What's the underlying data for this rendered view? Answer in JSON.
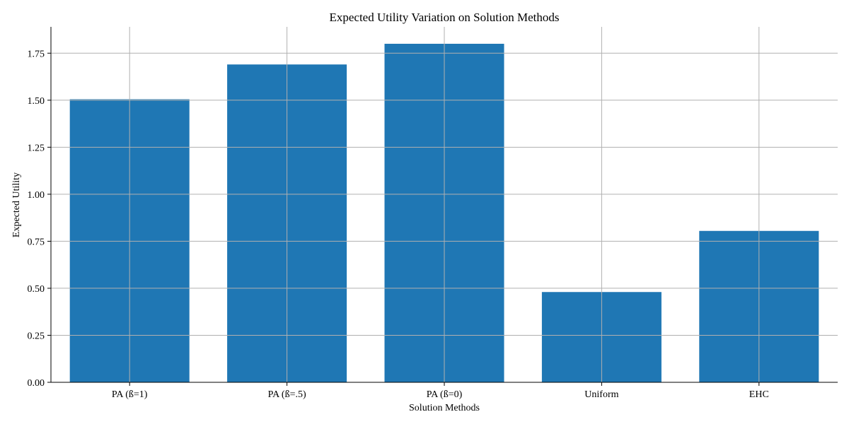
{
  "chart_data": {
    "type": "bar",
    "title": "Expected Utility Variation on Solution Methods",
    "xlabel": "Solution Methods",
    "ylabel": "Expected Utility",
    "categories": [
      "PA (ß=1)",
      "PA (ß=.5)",
      "PA (ß=0)",
      "Uniform",
      "EHC"
    ],
    "values": [
      1.505,
      1.69,
      1.8,
      0.48,
      0.805
    ],
    "ylim": [
      0,
      1.89
    ],
    "yticks": [
      "0.00",
      "0.25",
      "0.50",
      "0.75",
      "1.00",
      "1.25",
      "1.50",
      "1.75"
    ],
    "grid": true,
    "bar_color": "#1f77b4"
  }
}
